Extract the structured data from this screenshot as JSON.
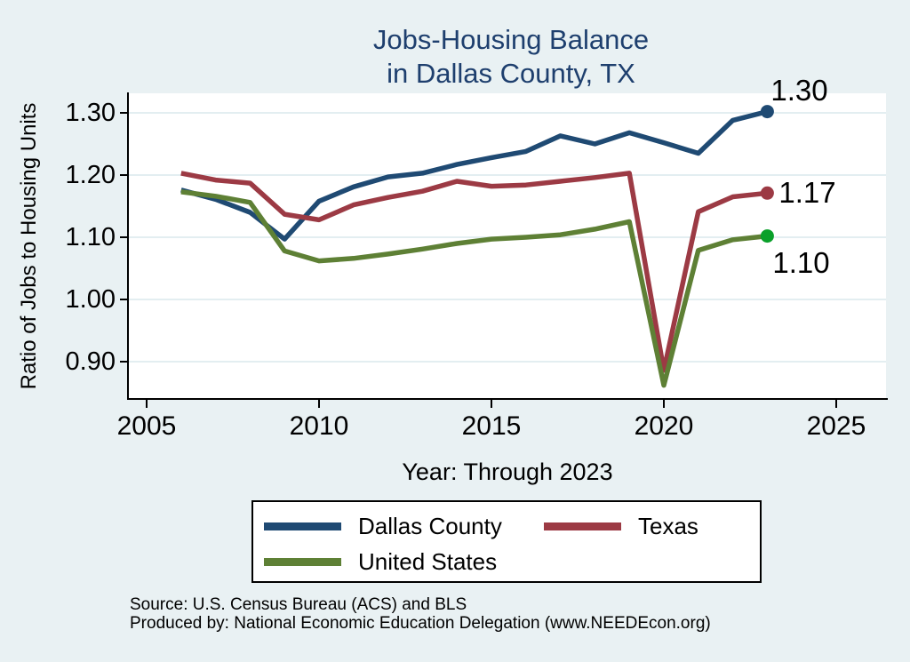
{
  "title": {
    "line1": "Jobs-Housing Balance",
    "line2": "in Dallas County, TX"
  },
  "axes": {
    "y_title": "Ratio of Jobs to Housing Units",
    "x_title": "Year: Through 2023",
    "y_ticks": [
      {
        "label": "1.30",
        "value": 1.3
      },
      {
        "label": "1.20",
        "value": 1.2
      },
      {
        "label": "1.10",
        "value": 1.1
      },
      {
        "label": "1.00",
        "value": 1.0
      },
      {
        "label": "0.90",
        "value": 0.9
      }
    ],
    "x_ticks": [
      {
        "label": "2005",
        "value": 2005
      },
      {
        "label": "2010",
        "value": 2010
      },
      {
        "label": "2015",
        "value": 2015
      },
      {
        "label": "2020",
        "value": 2020
      },
      {
        "label": "2025",
        "value": 2025
      }
    ]
  },
  "chart_data": {
    "type": "line",
    "title": "Jobs-Housing Balance in Dallas County, TX",
    "xlabel": "Year: Through 2023",
    "ylabel": "Ratio of Jobs to Housing Units",
    "xlim": [
      2004.5,
      2026.4
    ],
    "ylim": [
      0.84,
      1.33
    ],
    "grid": "horizontal",
    "legend_position": "bottom",
    "x": [
      2006,
      2007,
      2008,
      2009,
      2010,
      2011,
      2012,
      2013,
      2014,
      2015,
      2016,
      2017,
      2018,
      2019,
      2020,
      2021,
      2022,
      2023
    ],
    "series": [
      {
        "name": "Dallas County",
        "color": "#1f4a73",
        "marker_color": "#1f4a73",
        "end_label": "1.30",
        "label_placement": "above",
        "values": [
          1.176,
          1.161,
          1.14,
          1.097,
          1.158,
          1.181,
          1.197,
          1.203,
          1.217,
          1.228,
          1.238,
          1.263,
          1.25,
          1.268,
          1.252,
          1.235,
          1.288,
          1.302
        ]
      },
      {
        "name": "Texas",
        "color": "#9c3a44",
        "marker_color": "#9c3a44",
        "end_label": "1.17",
        "label_placement": "right",
        "values": [
          1.203,
          1.192,
          1.187,
          1.137,
          1.128,
          1.152,
          1.164,
          1.174,
          1.19,
          1.182,
          1.184,
          1.19,
          1.196,
          1.203,
          0.886,
          1.141,
          1.165,
          1.171
        ]
      },
      {
        "name": "United States",
        "color": "#5e8035",
        "marker_color": "#0aa02a",
        "end_label": "1.10",
        "label_placement": "below",
        "values": [
          1.173,
          1.166,
          1.156,
          1.078,
          1.062,
          1.066,
          1.073,
          1.081,
          1.09,
          1.097,
          1.1,
          1.104,
          1.113,
          1.125,
          0.862,
          1.079,
          1.096,
          1.102
        ]
      }
    ]
  },
  "legend": {
    "items": [
      {
        "label": "Dallas County",
        "color": "#1f4a73"
      },
      {
        "label": "Texas",
        "color": "#9c3a44"
      },
      {
        "label": "United States",
        "color": "#5e8035"
      }
    ]
  },
  "footer": {
    "source": "Source: U.S. Census Bureau (ACS) and BLS",
    "produced_by": "Produced by: National Economic Education Delegation (www.NEEDEcon.org)"
  },
  "colors": {
    "background": "#e9f1f3",
    "plot_background": "#ffffff",
    "gridline": "#e3eef1",
    "title_text": "#1e3f6e",
    "axis": "#000000",
    "value_labels": "#000000"
  }
}
